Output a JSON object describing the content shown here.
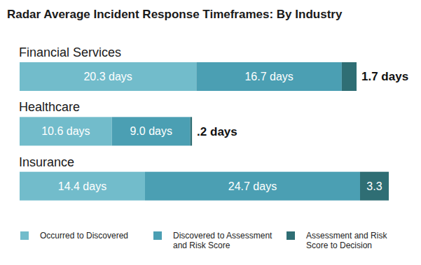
{
  "chart_data": {
    "type": "bar",
    "orientation": "horizontal",
    "stacked": true,
    "data_labels": true,
    "tick_labels": false,
    "legend": "bottom",
    "title": "Radar Average Incident Response Timeframes: By Industry",
    "categories": [
      "Financial Services",
      "Healthcare",
      "Insurance"
    ],
    "xlim": [
      0,
      42.4
    ],
    "series": [
      {
        "name": "Occurred to Discovered",
        "color": "#72bccb",
        "values": [
          20.3,
          10.6,
          14.4
        ],
        "value_labels": [
          "20.3 days",
          "10.6 days",
          "14.4 days"
        ]
      },
      {
        "name": "Discovered to Assessment and Risk Score",
        "color": "#4b9fb3",
        "values": [
          16.7,
          9.0,
          24.7
        ],
        "value_labels": [
          "16.7 days",
          "9.0 days",
          "24.7 days"
        ]
      },
      {
        "name": "Assessment and Risk Score to Decision",
        "color": "#2f6e74",
        "values": [
          1.7,
          0.2,
          3.3
        ],
        "value_labels": [
          "1.7 days",
          ".2 days",
          "3.3"
        ]
      }
    ]
  }
}
